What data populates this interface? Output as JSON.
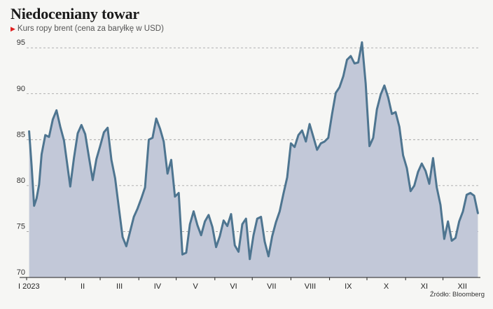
{
  "title": "Niedoceniany towar",
  "subtitle": "Kurs ropy brent (cena za baryłkę w USD)",
  "source": "Źródło: Bloomberg",
  "colors": {
    "line": "#4e7590",
    "fill": "#c2c8d8",
    "grid": "#9a9a9a",
    "marker": "#e02020"
  },
  "chart_data": {
    "type": "area",
    "title": "Niedoceniany towar",
    "subtitle": "Kurs ropy brent (cena za baryłkę w USD)",
    "ylim": [
      70,
      97
    ],
    "y_ticks": [
      70,
      75,
      80,
      85,
      90,
      95
    ],
    "x_tick_labels": [
      "I 2023",
      "II",
      "III",
      "IV",
      "V",
      "VI",
      "VII",
      "VIII",
      "IX",
      "X",
      "XI",
      "XII"
    ],
    "grid": "horizontal dashed",
    "series": [
      {
        "x": [
          "2023-01-03",
          "2023-01-05",
          "2023-01-07",
          "2023-01-09",
          "2023-01-11",
          "2023-01-13",
          "2023-01-16",
          "2023-01-19",
          "2023-01-22",
          "2023-01-25",
          "2023-01-28",
          "2023-01-31",
          "2023-02-02",
          "2023-02-05",
          "2023-02-08",
          "2023-02-11",
          "2023-02-14",
          "2023-02-17",
          "2023-02-20",
          "2023-02-23",
          "2023-02-26",
          "2023-03-01",
          "2023-03-04",
          "2023-03-07",
          "2023-03-10",
          "2023-03-13",
          "2023-03-16",
          "2023-03-19",
          "2023-03-22",
          "2023-03-25",
          "2023-03-28",
          "2023-03-31",
          "2023-04-03",
          "2023-04-06",
          "2023-04-09",
          "2023-04-12",
          "2023-04-15",
          "2023-04-18",
          "2023-04-21",
          "2023-04-24",
          "2023-04-27",
          "2023-04-30",
          "2023-05-03",
          "2023-05-06",
          "2023-05-09",
          "2023-05-12",
          "2023-05-15",
          "2023-05-18",
          "2023-05-21",
          "2023-05-24",
          "2023-05-27",
          "2023-05-30",
          "2023-06-02",
          "2023-06-05",
          "2023-06-08",
          "2023-06-11",
          "2023-06-14",
          "2023-06-17",
          "2023-06-20",
          "2023-06-23",
          "2023-06-26",
          "2023-06-29",
          "2023-07-02",
          "2023-07-05",
          "2023-07-08",
          "2023-07-11",
          "2023-07-14",
          "2023-07-17",
          "2023-07-20",
          "2023-07-23",
          "2023-07-26",
          "2023-07-29",
          "2023-08-01",
          "2023-08-04",
          "2023-08-07",
          "2023-08-10",
          "2023-08-13",
          "2023-08-16",
          "2023-08-19",
          "2023-08-22",
          "2023-08-25",
          "2023-08-28",
          "2023-08-31",
          "2023-09-03",
          "2023-09-06",
          "2023-09-09",
          "2023-09-12",
          "2023-09-15",
          "2023-09-18",
          "2023-09-21",
          "2023-09-24",
          "2023-09-27",
          "2023-09-30",
          "2023-10-03",
          "2023-10-06",
          "2023-10-09",
          "2023-10-12",
          "2023-10-15",
          "2023-10-18",
          "2023-10-21",
          "2023-10-24",
          "2023-10-27",
          "2023-10-30",
          "2023-11-02",
          "2023-11-05",
          "2023-11-08",
          "2023-11-11",
          "2023-11-14",
          "2023-11-17",
          "2023-11-20",
          "2023-11-23",
          "2023-11-26",
          "2023-11-29",
          "2023-12-02",
          "2023-12-05",
          "2023-12-08",
          "2023-12-11",
          "2023-12-14",
          "2023-12-17",
          "2023-12-20",
          "2023-12-23",
          "2023-12-26",
          "2023-12-29"
        ],
        "values": [
          85.9,
          82.2,
          77.8,
          78.6,
          80.1,
          83.4,
          85.5,
          85.3,
          87.2,
          88.2,
          86.4,
          84.9,
          82.9,
          79.9,
          83.0,
          85.7,
          86.6,
          85.6,
          83.1,
          80.6,
          82.9,
          84.3,
          85.8,
          86.3,
          82.8,
          80.8,
          77.6,
          74.4,
          73.4,
          75.0,
          76.6,
          77.5,
          78.6,
          79.8,
          85.0,
          85.2,
          87.3,
          86.2,
          84.8,
          81.3,
          82.8,
          78.8,
          79.2,
          72.5,
          72.7,
          75.8,
          77.2,
          75.7,
          74.6,
          76.1,
          76.8,
          75.5,
          73.3,
          74.5,
          76.2,
          75.6,
          76.9,
          73.5,
          72.8,
          75.8,
          76.4,
          72.0,
          74.6,
          76.4,
          76.6,
          73.9,
          72.3,
          74.5,
          76.0,
          77.2,
          79.1,
          80.9,
          84.6,
          84.2,
          85.5,
          86.0,
          84.8,
          86.7,
          85.3,
          83.9,
          84.6,
          84.8,
          85.2,
          87.8,
          90.1,
          90.7,
          91.9,
          93.7,
          94.1,
          93.3,
          93.4,
          95.6,
          91.1,
          84.3,
          85.2,
          88.3,
          89.9,
          90.9,
          89.6,
          87.8,
          88.0,
          86.4,
          83.3,
          81.9,
          79.4,
          80.0,
          81.5,
          82.4,
          81.6,
          80.2,
          83.0,
          79.8,
          77.9,
          74.2,
          76.1,
          74.0,
          74.3,
          76.1,
          77.2,
          79.0,
          79.2,
          78.9,
          77.0
        ]
      }
    ]
  }
}
